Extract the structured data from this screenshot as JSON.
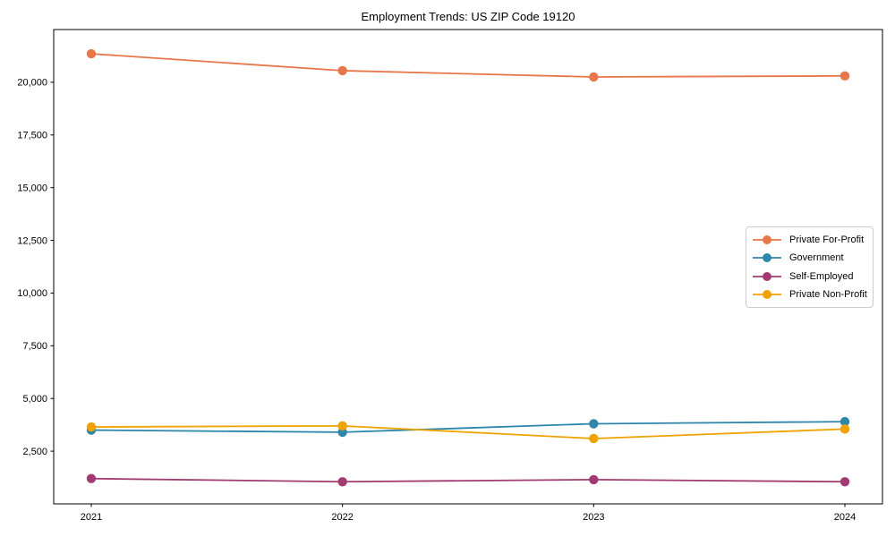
{
  "chart_data": {
    "type": "line",
    "title": "Employment Trends: US ZIP Code 19120",
    "x": [
      "2021",
      "2022",
      "2023",
      "2024"
    ],
    "series": [
      {
        "name": "Private For-Profit",
        "color": "#E8764B",
        "values": [
          21350,
          20550,
          20250,
          20300
        ]
      },
      {
        "name": "Government",
        "color": "#2E86AB",
        "values": [
          3500,
          3400,
          3800,
          3900
        ]
      },
      {
        "name": "Self-Employed",
        "color": "#A23B72",
        "values": [
          1200,
          1050,
          1150,
          1050
        ]
      },
      {
        "name": "Private Non-Profit",
        "color": "#F0A202",
        "values": [
          3650,
          3700,
          3100,
          3550
        ]
      }
    ],
    "xlabel": "",
    "ylabel": "",
    "ylim": [
      0,
      22500
    ],
    "yticks": [
      2500,
      5000,
      7500,
      10000,
      12500,
      15000,
      17500,
      20000
    ],
    "ytick_labels": [
      "2,500",
      "5,000",
      "7,500",
      "10,000",
      "12,500",
      "15,000",
      "17,500",
      "20,000"
    ],
    "grid": false,
    "legend_position": "center-right",
    "marker": "circle"
  },
  "colors": {
    "background": "#ffffff",
    "axis": "#000000",
    "text": "#000000",
    "legend_border": "#cccccc"
  }
}
